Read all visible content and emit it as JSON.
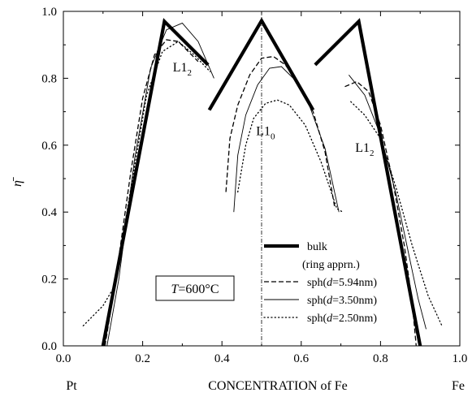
{
  "chart_data": {
    "type": "line",
    "xlabel": "CONCENTRATION of Fe",
    "ylabel": "η̄",
    "x_end_labels": {
      "left": "Pt",
      "right": "Fe"
    },
    "xlim": [
      0.0,
      1.0
    ],
    "ylim": [
      0.0,
      1.0
    ],
    "xticks": [
      "0.0",
      "0.2",
      "0.4",
      "0.6",
      "0.8",
      "1.0"
    ],
    "yticks": [
      "0.0",
      "0.2",
      "0.4",
      "0.6",
      "0.8",
      "1.0"
    ],
    "grid": false,
    "legend_position": "bottom-right",
    "reference_line": {
      "x": 0.5,
      "style": "dash-dot"
    },
    "temperature_label": {
      "prefix": "T",
      "text": "=600°C"
    },
    "phase_labels": [
      {
        "base": "L1",
        "sub": "2",
        "x": 0.3,
        "y": 0.82
      },
      {
        "base": "L1",
        "sub": "0",
        "x": 0.51,
        "y": 0.63
      },
      {
        "base": "L1",
        "sub": "2",
        "x": 0.76,
        "y": 0.58
      }
    ],
    "legend": [
      {
        "series": "bulk",
        "parts": [
          {
            "t": "bulk",
            "i": false
          }
        ]
      },
      {
        "series": null,
        "parts": [
          {
            "t": "(ring apprn.)",
            "i": false
          }
        ]
      },
      {
        "series": "sph594",
        "parts": [
          {
            "t": "sph(",
            "i": false
          },
          {
            "t": "d",
            "i": true
          },
          {
            "t": "=5.94nm)",
            "i": false
          }
        ]
      },
      {
        "series": "sph350",
        "parts": [
          {
            "t": "sph(",
            "i": false
          },
          {
            "t": "d",
            "i": true
          },
          {
            "t": "=3.50nm)",
            "i": false
          }
        ]
      },
      {
        "series": "sph250",
        "parts": [
          {
            "t": "sph(",
            "i": false
          },
          {
            "t": "d",
            "i": true
          },
          {
            "t": "=2.50nm)",
            "i": false
          }
        ]
      }
    ],
    "series": [
      {
        "id": "bulk",
        "style": "bulk",
        "segments": [
          [
            [
              0.1,
              0.0
            ],
            [
              0.255,
              0.97
            ],
            [
              0.365,
              0.84
            ]
          ],
          [
            [
              0.368,
              0.705
            ],
            [
              0.5,
              0.972
            ],
            [
              0.63,
              0.705
            ]
          ],
          [
            [
              0.635,
              0.84
            ],
            [
              0.745,
              0.97
            ],
            [
              0.9,
              0.0
            ]
          ]
        ]
      },
      {
        "id": "sph594",
        "style": "dash",
        "segments": [
          [
            [
              0.105,
              0.0
            ],
            [
              0.13,
              0.18
            ],
            [
              0.17,
              0.52
            ],
            [
              0.2,
              0.74
            ],
            [
              0.23,
              0.87
            ],
            [
              0.26,
              0.915
            ],
            [
              0.29,
              0.91
            ],
            [
              0.34,
              0.85
            ]
          ],
          [
            [
              0.41,
              0.46
            ],
            [
              0.42,
              0.62
            ],
            [
              0.44,
              0.72
            ],
            [
              0.47,
              0.81
            ],
            [
              0.5,
              0.86
            ],
            [
              0.53,
              0.865
            ],
            [
              0.56,
              0.84
            ],
            [
              0.59,
              0.79
            ],
            [
              0.63,
              0.7
            ],
            [
              0.66,
              0.58
            ],
            [
              0.685,
              0.41
            ]
          ],
          [
            [
              0.71,
              0.775
            ],
            [
              0.74,
              0.79
            ],
            [
              0.77,
              0.76
            ],
            [
              0.8,
              0.66
            ],
            [
              0.83,
              0.5
            ],
            [
              0.86,
              0.3
            ],
            [
              0.88,
              0.13
            ],
            [
              0.89,
              0.0
            ]
          ]
        ]
      },
      {
        "id": "sph350",
        "style": "solid",
        "segments": [
          [
            [
              0.11,
              0.0
            ],
            [
              0.14,
              0.2
            ],
            [
              0.18,
              0.56
            ],
            [
              0.22,
              0.83
            ],
            [
              0.26,
              0.945
            ],
            [
              0.3,
              0.965
            ],
            [
              0.34,
              0.91
            ],
            [
              0.38,
              0.8
            ]
          ],
          [
            [
              0.43,
              0.4
            ],
            [
              0.44,
              0.57
            ],
            [
              0.46,
              0.69
            ],
            [
              0.49,
              0.78
            ],
            [
              0.52,
              0.83
            ],
            [
              0.55,
              0.835
            ],
            [
              0.58,
              0.8
            ],
            [
              0.62,
              0.72
            ],
            [
              0.66,
              0.59
            ],
            [
              0.695,
              0.4
            ]
          ],
          [
            [
              0.72,
              0.81
            ],
            [
              0.76,
              0.75
            ],
            [
              0.8,
              0.63
            ],
            [
              0.84,
              0.45
            ],
            [
              0.87,
              0.28
            ],
            [
              0.895,
              0.14
            ],
            [
              0.915,
              0.05
            ]
          ]
        ]
      },
      {
        "id": "sph250",
        "style": "dot",
        "segments": [
          [
            [
              0.05,
              0.06
            ],
            [
              0.1,
              0.12
            ],
            [
              0.13,
              0.18
            ],
            [
              0.17,
              0.47
            ],
            [
              0.21,
              0.75
            ],
            [
              0.25,
              0.88
            ],
            [
              0.29,
              0.91
            ],
            [
              0.33,
              0.87
            ],
            [
              0.37,
              0.82
            ]
          ],
          [
            [
              0.44,
              0.46
            ],
            [
              0.46,
              0.6
            ],
            [
              0.48,
              0.68
            ],
            [
              0.51,
              0.725
            ],
            [
              0.54,
              0.735
            ],
            [
              0.57,
              0.72
            ],
            [
              0.61,
              0.66
            ],
            [
              0.65,
              0.55
            ],
            [
              0.69,
              0.41
            ],
            [
              0.705,
              0.4
            ]
          ],
          [
            [
              0.725,
              0.73
            ],
            [
              0.76,
              0.69
            ],
            [
              0.8,
              0.62
            ],
            [
              0.84,
              0.47
            ],
            [
              0.88,
              0.3
            ],
            [
              0.92,
              0.15
            ],
            [
              0.955,
              0.06
            ]
          ]
        ]
      }
    ]
  }
}
